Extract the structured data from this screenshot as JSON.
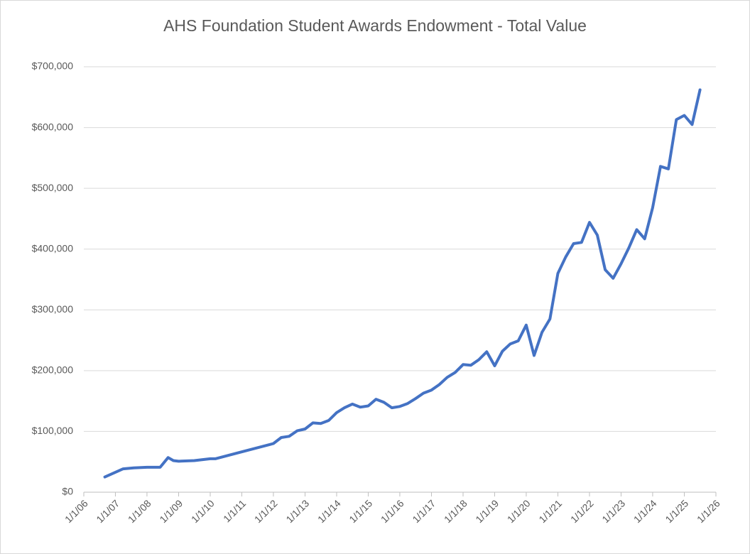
{
  "chart_data": {
    "type": "line",
    "title": "AHS Foundation Student Awards Endowment  -  Total Value",
    "x": [
      "2006-09-01",
      "2007-04-01",
      "2007-08-01",
      "2008-01-01",
      "2008-06-01",
      "2008-09-01",
      "2008-11-01",
      "2009-01-01",
      "2009-07-01",
      "2010-01-01",
      "2010-03-01",
      "2012-01-01",
      "2012-04-01",
      "2012-07-01",
      "2012-10-01",
      "2013-01-01",
      "2013-04-01",
      "2013-07-01",
      "2013-10-01",
      "2014-01-01",
      "2014-04-01",
      "2014-07-01",
      "2014-10-01",
      "2015-01-01",
      "2015-04-01",
      "2015-07-01",
      "2015-10-01",
      "2016-01-01",
      "2016-04-01",
      "2016-07-01",
      "2016-10-01",
      "2017-01-01",
      "2017-04-01",
      "2017-07-01",
      "2017-10-01",
      "2018-01-01",
      "2018-04-01",
      "2018-07-01",
      "2018-10-01",
      "2019-01-01",
      "2019-04-01",
      "2019-07-01",
      "2019-10-01",
      "2020-01-01",
      "2020-04-01",
      "2020-07-01",
      "2020-10-01",
      "2021-01-01",
      "2021-04-01",
      "2021-07-01",
      "2021-10-01",
      "2022-01-01",
      "2022-04-01",
      "2022-07-01",
      "2022-10-01",
      "2023-01-01",
      "2023-04-01",
      "2023-07-01",
      "2023-10-01",
      "2024-01-01",
      "2024-04-01",
      "2024-07-01",
      "2024-10-01",
      "2025-01-01",
      "2025-04-01",
      "2025-07-01"
    ],
    "series": [
      {
        "name": "Total Value",
        "color": "#4472c4",
        "values": [
          25000,
          38500,
          40000,
          41000,
          41000,
          57000,
          52000,
          51000,
          52000,
          55000,
          55000,
          80000,
          90000,
          92000,
          101000,
          104000,
          114000,
          113000,
          118000,
          131000,
          139000,
          145000,
          140000,
          142000,
          153000,
          148000,
          139000,
          141000,
          146000,
          154000,
          163000,
          168000,
          177000,
          189000,
          197000,
          210000,
          209000,
          218000,
          231000,
          208000,
          232000,
          244000,
          249000,
          275000,
          225000,
          263000,
          285000,
          360000,
          387000,
          409000,
          411000,
          444000,
          423000,
          366000,
          352000,
          376000,
          402000,
          432000,
          417000,
          468000,
          536000,
          532000,
          613000,
          620000,
          605000,
          662000
        ]
      }
    ],
    "xlim": [
      "2006-01-01",
      "2026-01-01"
    ],
    "xticks": [
      {
        "value": "2006-01-01",
        "label": "1/1/06"
      },
      {
        "value": "2007-01-01",
        "label": "1/1/07"
      },
      {
        "value": "2008-01-01",
        "label": "1/1/08"
      },
      {
        "value": "2009-01-01",
        "label": "1/1/09"
      },
      {
        "value": "2010-01-01",
        "label": "1/1/10"
      },
      {
        "value": "2011-01-01",
        "label": "1/1/11"
      },
      {
        "value": "2012-01-01",
        "label": "1/1/12"
      },
      {
        "value": "2013-01-01",
        "label": "1/1/13"
      },
      {
        "value": "2014-01-01",
        "label": "1/1/14"
      },
      {
        "value": "2015-01-01",
        "label": "1/1/15"
      },
      {
        "value": "2016-01-01",
        "label": "1/1/16"
      },
      {
        "value": "2017-01-01",
        "label": "1/1/17"
      },
      {
        "value": "2018-01-01",
        "label": "1/1/18"
      },
      {
        "value": "2019-01-01",
        "label": "1/1/19"
      },
      {
        "value": "2020-01-01",
        "label": "1/1/20"
      },
      {
        "value": "2021-01-01",
        "label": "1/1/21"
      },
      {
        "value": "2022-01-01",
        "label": "1/1/22"
      },
      {
        "value": "2023-01-01",
        "label": "1/1/23"
      },
      {
        "value": "2024-01-01",
        "label": "1/1/24"
      },
      {
        "value": "2025-01-01",
        "label": "1/1/25"
      },
      {
        "value": "2026-01-01",
        "label": "1/1/26"
      }
    ],
    "ylim": [
      0,
      700000
    ],
    "yticks": [
      {
        "value": 0,
        "label": "$0"
      },
      {
        "value": 100000,
        "label": "$100,000"
      },
      {
        "value": 200000,
        "label": "$200,000"
      },
      {
        "value": 300000,
        "label": "$300,000"
      },
      {
        "value": 400000,
        "label": "$400,000"
      },
      {
        "value": 500000,
        "label": "$500,000"
      },
      {
        "value": 600000,
        "label": "$600,000"
      },
      {
        "value": 700000,
        "label": "$700,000"
      }
    ],
    "grid": true
  }
}
